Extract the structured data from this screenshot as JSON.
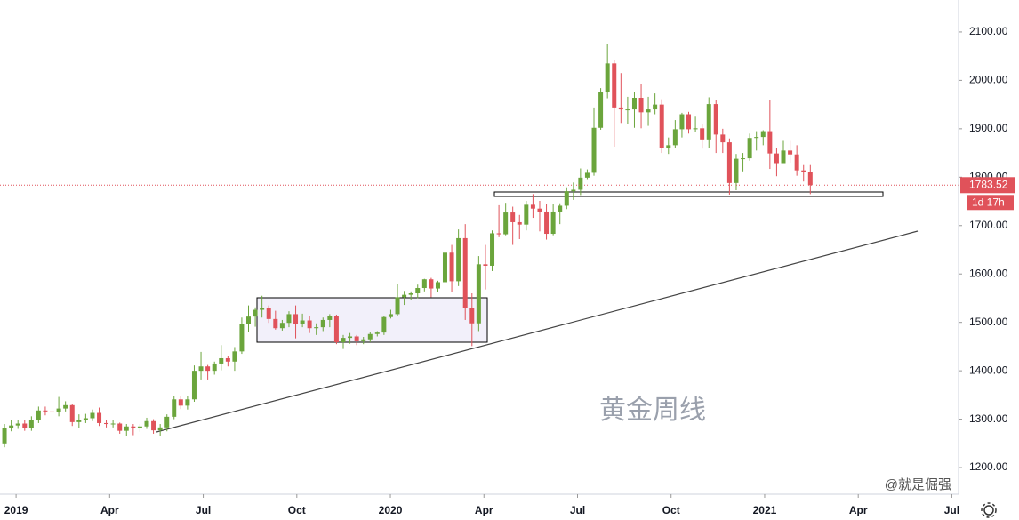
{
  "chart_data": {
    "type": "candlestick",
    "watermark": "黄金周线",
    "signature": "@就是倔强",
    "countdown": "1d 17h",
    "up_color": "#6ba53c",
    "down_color": "#e0525a",
    "xlim": [
      2018.957,
      2021.518
    ],
    "xticks": [
      {
        "value": 2019,
        "label": "2019"
      },
      {
        "value": 2019.25,
        "label": "Apr"
      },
      {
        "value": 2019.5,
        "label": "Jul"
      },
      {
        "value": 2019.75,
        "label": "Oct"
      },
      {
        "value": 2020,
        "label": "2020"
      },
      {
        "value": 2020.25,
        "label": "Apr"
      },
      {
        "value": 2020.5,
        "label": "Jul"
      },
      {
        "value": 2020.75,
        "label": "Oct"
      },
      {
        "value": 2021,
        "label": "2021"
      },
      {
        "value": 2021.25,
        "label": "Apr"
      },
      {
        "value": 2021.5,
        "label": "Jul"
      }
    ],
    "ylim": [
      1145,
      2166
    ],
    "yticks": [
      {
        "value": 1200,
        "label": "1200.00"
      },
      {
        "value": 1300,
        "label": "1300.00"
      },
      {
        "value": 1400,
        "label": "1400.00"
      },
      {
        "value": 1500,
        "label": "1500.00"
      },
      {
        "value": 1600,
        "label": "1600.00"
      },
      {
        "value": 1700,
        "label": "1700.00"
      },
      {
        "value": 1800,
        "label": "1800.00"
      },
      {
        "value": 1900,
        "label": "1900.00"
      },
      {
        "value": 2000,
        "label": "2000.00"
      },
      {
        "value": 2100,
        "label": "2100.00"
      }
    ],
    "x": [
      2018.969,
      2018.987,
      2019.005,
      2019.023,
      2019.041,
      2019.06,
      2019.078,
      2019.096,
      2019.114,
      2019.132,
      2019.15,
      2019.168,
      2019.186,
      2019.204,
      2019.222,
      2019.241,
      2019.259,
      2019.277,
      2019.295,
      2019.313,
      2019.331,
      2019.349,
      2019.367,
      2019.385,
      2019.403,
      2019.422,
      2019.44,
      2019.458,
      2019.476,
      2019.494,
      2019.512,
      2019.53,
      2019.548,
      2019.566,
      2019.584,
      2019.603,
      2019.621,
      2019.639,
      2019.657,
      2019.675,
      2019.693,
      2019.711,
      2019.729,
      2019.747,
      2019.765,
      2019.784,
      2019.802,
      2019.82,
      2019.838,
      2019.856,
      2019.874,
      2019.892,
      2019.91,
      2019.928,
      2019.946,
      2019.965,
      2019.983,
      2020.001,
      2020.019,
      2020.037,
      2020.055,
      2020.073,
      2020.091,
      2020.109,
      2020.127,
      2020.146,
      2020.164,
      2020.182,
      2020.2,
      2020.218,
      2020.236,
      2020.254,
      2020.272,
      2020.29,
      2020.308,
      2020.327,
      2020.345,
      2020.363,
      2020.381,
      2020.399,
      2020.417,
      2020.435,
      2020.453,
      2020.471,
      2020.489,
      2020.508,
      2020.526,
      2020.544,
      2020.562,
      2020.58,
      2020.598,
      2020.616,
      2020.634,
      2020.652,
      2020.67,
      2020.689,
      2020.707,
      2020.725,
      2020.743,
      2020.761,
      2020.779,
      2020.797,
      2020.815,
      2020.833,
      2020.851,
      2020.87,
      2020.888,
      2020.906,
      2020.924,
      2020.942,
      2020.96,
      2020.978,
      2020.996,
      2021.014,
      2021.032,
      2021.05,
      2021.068,
      2021.086,
      2021.104,
      2021.122
    ],
    "open": [
      1250,
      1281,
      1287,
      1291,
      1282,
      1298,
      1318,
      1316,
      1314,
      1322,
      1329,
      1294,
      1299,
      1302,
      1313,
      1292,
      1290,
      1291,
      1276,
      1285,
      1281,
      1285,
      1296,
      1277,
      1283,
      1305,
      1341,
      1328,
      1341,
      1400,
      1409,
      1400,
      1415,
      1426,
      1419,
      1440,
      1496,
      1512,
      1526,
      1529,
      1507,
      1488,
      1499,
      1517,
      1497,
      1504,
      1488,
      1490,
      1505,
      1514,
      1459,
      1468,
      1471,
      1461,
      1465,
      1476,
      1479,
      1511,
      1517,
      1552,
      1557,
      1560,
      1571,
      1589,
      1570,
      1583,
      1644,
      1585,
      1674,
      1529,
      1498,
      1620,
      1617,
      1684,
      1682,
      1727,
      1707,
      1702,
      1743,
      1735,
      1729,
      1683,
      1729,
      1741,
      1771,
      1774,
      1799,
      1809,
      1902,
      1975,
      2035,
      1944,
      1940,
      1940,
      1964,
      1934,
      1940,
      1950,
      1860,
      1866,
      1899,
      1930,
      1899,
      1901,
      1878,
      1951,
      1888,
      1872,
      1788,
      1838,
      1839,
      1881,
      1883,
      1895,
      1849,
      1829,
      1855,
      1847,
      1814,
      1811
    ],
    "high": [
      1290,
      1298,
      1299,
      1299,
      1306,
      1326,
      1326,
      1324,
      1346,
      1337,
      1331,
      1310,
      1311,
      1320,
      1324,
      1299,
      1298,
      1293,
      1290,
      1290,
      1290,
      1303,
      1300,
      1290,
      1310,
      1348,
      1348,
      1348,
      1411,
      1439,
      1412,
      1419,
      1453,
      1430,
      1449,
      1510,
      1535,
      1531,
      1555,
      1535,
      1524,
      1505,
      1523,
      1535,
      1518,
      1513,
      1498,
      1510,
      1517,
      1516,
      1474,
      1478,
      1474,
      1470,
      1480,
      1482,
      1514,
      1526,
      1580,
      1565,
      1564,
      1578,
      1590,
      1592,
      1586,
      1689,
      1660,
      1692,
      1703,
      1560,
      1637,
      1660,
      1690,
      1742,
      1747,
      1739,
      1722,
      1751,
      1765,
      1751,
      1744,
      1744,
      1746,
      1779,
      1789,
      1818,
      1816,
      1944,
      1984,
      2075,
      2043,
      2015,
      1966,
      1976,
      1992,
      1966,
      1973,
      1961,
      1882,
      1918,
      1933,
      1935,
      1925,
      1910,
      1965,
      1960,
      1900,
      1880,
      1848,
      1850,
      1890,
      1895,
      1897,
      1959,
      1860,
      1875,
      1875,
      1866,
      1825,
      1825
    ],
    "low": [
      1242,
      1275,
      1280,
      1276,
      1276,
      1292,
      1308,
      1306,
      1306,
      1316,
      1286,
      1281,
      1292,
      1296,
      1286,
      1283,
      1283,
      1270,
      1266,
      1267,
      1274,
      1280,
      1270,
      1266,
      1275,
      1300,
      1321,
      1320,
      1336,
      1382,
      1382,
      1392,
      1401,
      1409,
      1400,
      1435,
      1480,
      1491,
      1510,
      1499,
      1485,
      1483,
      1490,
      1467,
      1490,
      1478,
      1474,
      1482,
      1490,
      1455,
      1445,
      1456,
      1453,
      1455,
      1459,
      1471,
      1474,
      1508,
      1514,
      1536,
      1546,
      1550,
      1564,
      1552,
      1562,
      1580,
      1563,
      1575,
      1505,
      1451,
      1482,
      1568,
      1606,
      1676,
      1680,
      1660,
      1672,
      1690,
      1716,
      1688,
      1671,
      1680,
      1703,
      1734,
      1753,
      1763,
      1796,
      1803,
      1898,
      1963,
      1863,
      1912,
      1910,
      1902,
      1901,
      1906,
      1930,
      1850,
      1848,
      1861,
      1882,
      1890,
      1893,
      1859,
      1860,
      1850,
      1850,
      1764,
      1773,
      1812,
      1834,
      1855,
      1866,
      1817,
      1802,
      1838,
      1830,
      1803,
      1791,
      1765
    ],
    "close": [
      1281,
      1287,
      1291,
      1282,
      1298,
      1318,
      1316,
      1314,
      1322,
      1329,
      1294,
      1299,
      1302,
      1313,
      1292,
      1290,
      1291,
      1276,
      1285,
      1281,
      1285,
      1296,
      1277,
      1283,
      1305,
      1341,
      1328,
      1341,
      1400,
      1409,
      1400,
      1415,
      1426,
      1419,
      1440,
      1496,
      1512,
      1526,
      1529,
      1507,
      1488,
      1499,
      1517,
      1497,
      1504,
      1488,
      1490,
      1505,
      1514,
      1459,
      1468,
      1471,
      1461,
      1465,
      1476,
      1479,
      1511,
      1517,
      1552,
      1557,
      1560,
      1571,
      1589,
      1570,
      1583,
      1644,
      1585,
      1674,
      1529,
      1498,
      1620,
      1617,
      1684,
      1682,
      1727,
      1707,
      1702,
      1743,
      1735,
      1729,
      1683,
      1729,
      1741,
      1771,
      1774,
      1799,
      1809,
      1902,
      1975,
      2035,
      1944,
      1940,
      1940,
      1964,
      1934,
      1940,
      1950,
      1860,
      1866,
      1899,
      1930,
      1899,
      1901,
      1878,
      1951,
      1888,
      1872,
      1788,
      1838,
      1839,
      1881,
      1883,
      1895,
      1849,
      1829,
      1855,
      1847,
      1814,
      1811,
      1783.52
    ]
  }
}
